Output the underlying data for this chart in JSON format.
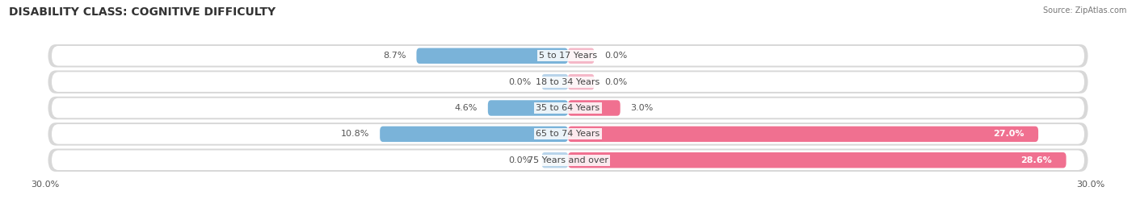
{
  "title": "DISABILITY CLASS: COGNITIVE DIFFICULTY",
  "source": "Source: ZipAtlas.com",
  "categories": [
    "5 to 17 Years",
    "18 to 34 Years",
    "35 to 64 Years",
    "65 to 74 Years",
    "75 Years and over"
  ],
  "male_values": [
    8.7,
    0.0,
    4.6,
    10.8,
    0.0
  ],
  "female_values": [
    0.0,
    0.0,
    3.0,
    27.0,
    28.6
  ],
  "x_max": 30.0,
  "male_color": "#7ab3d9",
  "female_color": "#f07090",
  "male_color_light": "#b8d4ea",
  "female_color_light": "#f5b8c8",
  "row_bg_outer": "#d8d8d8",
  "row_bg_inner": "#f5f5f5",
  "title_fontsize": 10,
  "label_fontsize": 8,
  "tick_fontsize": 8,
  "legend_fontsize": 8.5,
  "value_color": "#555555",
  "title_color": "#333333",
  "center_label_color": "#444444"
}
